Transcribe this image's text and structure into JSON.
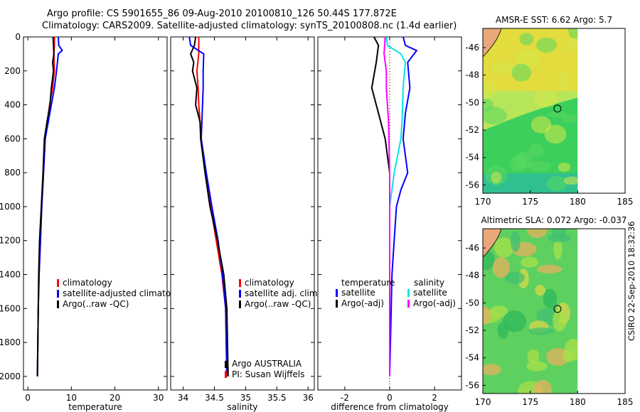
{
  "header": {
    "line1": "Argo profile: CS 5901655_86 09-Aug-2010 20100810_126 50.44S 177.872E",
    "line2": "Climatology: CARS2009. Satellite-adjusted climatology: synTS_20100808.nc (1.4d earlier)"
  },
  "stamp": "CSIRO 22-Sep-2010 18:32:36",
  "colors": {
    "climatology": "#ff0000",
    "satellite": "#0000ff",
    "argo": "#000000",
    "cyan": "#00e5e5",
    "magenta": "#ff00ff"
  },
  "chart_data": [
    {
      "type": "line",
      "xlabel": "temperature",
      "xlim": [
        -1,
        32
      ],
      "ylim": [
        2080,
        0
      ],
      "xticks": [
        0,
        10,
        20,
        30
      ],
      "yticks": [
        0,
        200,
        400,
        600,
        800,
        1000,
        1200,
        1400,
        1600,
        1800,
        2000
      ],
      "legend": [
        "climatology",
        "satellite-adjusted climatology",
        "Argo(..raw -QC)"
      ],
      "series": [
        {
          "name": "climatology",
          "color": "#ff0000",
          "x": [
            6.1,
            6.1,
            6.0,
            6.1,
            5.7,
            5.0,
            4.5,
            4.0,
            3.6,
            3.2,
            2.9,
            2.6,
            2.4,
            2.3,
            2.2
          ],
          "y": [
            0,
            50,
            100,
            200,
            300,
            400,
            500,
            600,
            800,
            1000,
            1200,
            1400,
            1600,
            1800,
            2000
          ]
        },
        {
          "name": "satellite-adjusted climatology",
          "color": "#0000ff",
          "x": [
            7.0,
            7.1,
            7.9,
            7.0,
            6.6,
            6.1,
            5.4,
            4.7,
            4.0,
            3.6,
            3.2,
            2.9,
            2.6,
            2.4,
            2.3,
            2.2
          ],
          "y": [
            0,
            50,
            80,
            100,
            200,
            300,
            400,
            500,
            600,
            800,
            1000,
            1200,
            1400,
            1600,
            1800,
            2000
          ]
        },
        {
          "name": "Argo(..raw -QC)",
          "color": "#000000",
          "x": [
            5.8,
            6.0,
            5.7,
            5.9,
            5.4,
            5.1,
            4.4,
            3.8,
            3.5,
            3.1,
            2.7,
            2.5,
            2.4,
            2.3,
            2.2
          ],
          "y": [
            0,
            100,
            150,
            200,
            300,
            400,
            500,
            600,
            800,
            1000,
            1200,
            1400,
            1600,
            1800,
            2000
          ]
        }
      ]
    },
    {
      "type": "line",
      "xlabel": "salinity",
      "xlim": [
        33.8,
        36.1
      ],
      "ylim": [
        2080,
        0
      ],
      "xticks": [
        34,
        34.5,
        35,
        35.5,
        36
      ],
      "yticks": [
        0,
        200,
        400,
        600,
        800,
        1000,
        1200,
        1400,
        1600,
        1800,
        2000
      ],
      "legend": [
        "climatology",
        "satellite adj. clim.",
        "Argo(..raw -QC)"
      ],
      "annotations": [
        "Argo AUSTRALIA",
        "PI: Susan Wijffels"
      ],
      "series": [
        {
          "name": "climatology",
          "color": "#ff0000",
          "x": [
            34.25,
            34.25,
            34.22,
            34.24,
            34.25,
            34.27,
            34.29,
            34.36,
            34.44,
            34.53,
            34.62,
            34.68,
            34.7
          ],
          "y": [
            0,
            100,
            200,
            300,
            400,
            500,
            600,
            800,
            1000,
            1200,
            1400,
            1600,
            2000
          ]
        },
        {
          "name": "satellite adj. clim.",
          "color": "#0000ff",
          "x": [
            34.1,
            34.12,
            34.33,
            34.32,
            34.32,
            34.31,
            34.3,
            34.29,
            34.37,
            34.46,
            34.56,
            34.63,
            34.68,
            34.7
          ],
          "y": [
            0,
            50,
            100,
            200,
            300,
            400,
            500,
            600,
            800,
            1000,
            1200,
            1400,
            1600,
            2000
          ]
        },
        {
          "name": "Argo(..raw -QC)",
          "color": "#000000",
          "x": [
            34.2,
            34.18,
            34.12,
            34.17,
            34.15,
            34.22,
            34.2,
            34.27,
            34.28,
            34.35,
            34.43,
            34.55,
            34.65,
            34.7,
            34.72
          ],
          "y": [
            0,
            50,
            100,
            150,
            200,
            300,
            400,
            500,
            600,
            800,
            1000,
            1200,
            1400,
            1600,
            2000
          ]
        }
      ]
    },
    {
      "type": "line",
      "xlabel": "difference from climatology",
      "xlim": [
        -3.2,
        3.2
      ],
      "ylim": [
        2080,
        0
      ],
      "xticks": [
        -2,
        0,
        2
      ],
      "yticks": [
        0,
        200,
        400,
        600,
        800,
        1000,
        1200,
        1400,
        1600,
        1800,
        2000
      ],
      "legend_left_title": "temperature",
      "legend_right_title": "salinity",
      "legend_left": [
        "satellite",
        "Argo(-adj)"
      ],
      "legend_right": [
        "satellite",
        "Argo(-adj)"
      ],
      "series": [
        {
          "name": "temperature satellite",
          "color": "#0000ff",
          "x": [
            0.6,
            0.7,
            1.2,
            0.8,
            0.9,
            0.7,
            0.6,
            0.7,
            0.8,
            0.5,
            0.3,
            0.2,
            0.1,
            0.05,
            0.0
          ],
          "y": [
            0,
            50,
            80,
            150,
            300,
            450,
            600,
            700,
            800,
            900,
            1000,
            1200,
            1400,
            1700,
            2000
          ]
        },
        {
          "name": "temperature Argo(-adj)",
          "color": "#000000",
          "x": [
            -0.7,
            -0.5,
            -0.6,
            -0.8,
            -0.4,
            -0.2,
            -0.1,
            0.0,
            0.0,
            0.0
          ],
          "y": [
            0,
            50,
            150,
            300,
            500,
            600,
            700,
            800,
            1200,
            2000
          ]
        },
        {
          "name": "salinity satellite",
          "color": "#00e5e5",
          "x": [
            -0.15,
            -0.1,
            0.5,
            0.7,
            0.6,
            0.55,
            0.5,
            0.2,
            0.0,
            0.0,
            0.0
          ],
          "y": [
            0,
            50,
            100,
            150,
            300,
            500,
            600,
            800,
            1000,
            1500,
            2000
          ]
        },
        {
          "name": "salinity Argo(-adj)",
          "color": "#ff00ff",
          "x": [
            -0.2,
            -0.25,
            -0.15,
            -0.15,
            -0.05,
            0.0,
            0.0,
            0.0,
            0.0
          ],
          "y": [
            0,
            100,
            200,
            300,
            500,
            800,
            1200,
            1600,
            2000
          ]
        }
      ]
    },
    {
      "type": "heatmap",
      "title": "AMSR-E SST: 6.62 Argo: 5.7",
      "xlim": [
        170,
        185
      ],
      "ylim": [
        -56.6,
        -44.6
      ],
      "xticks": [
        170,
        175,
        180,
        185
      ],
      "yticks": [
        -46,
        -48,
        -50,
        -52,
        -54,
        -56
      ],
      "float_position": {
        "lon": 177.872,
        "lat": -50.44
      }
    },
    {
      "type": "heatmap",
      "title": "Altimetric SLA: 0.072 Argo: -0.037",
      "xlim": [
        170,
        185
      ],
      "ylim": [
        -56.6,
        -44.6
      ],
      "xticks": [
        170,
        175,
        180,
        185
      ],
      "yticks": [
        -46,
        -48,
        -50,
        -52,
        -54,
        -56
      ],
      "float_position": {
        "lon": 177.872,
        "lat": -50.44
      }
    }
  ]
}
